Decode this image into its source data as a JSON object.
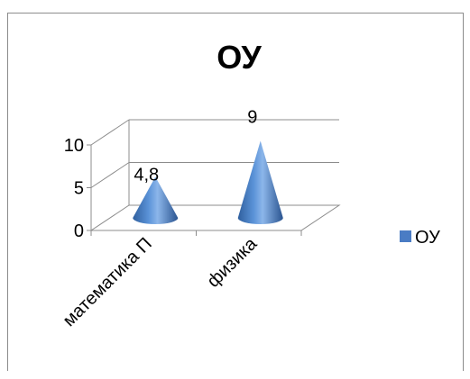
{
  "chart_data": {
    "type": "bar",
    "style": "3d-cone",
    "title": "ОУ",
    "categories": [
      "математика П",
      "физика"
    ],
    "series": [
      {
        "name": "ОУ",
        "values": [
          4.8,
          9
        ],
        "color": "#4a7cc4"
      }
    ],
    "data_labels": [
      "4,8",
      "9"
    ],
    "y_ticks": [
      "0",
      "5",
      "10"
    ],
    "ylim": [
      0,
      10
    ],
    "grid": true,
    "legend": "right"
  }
}
